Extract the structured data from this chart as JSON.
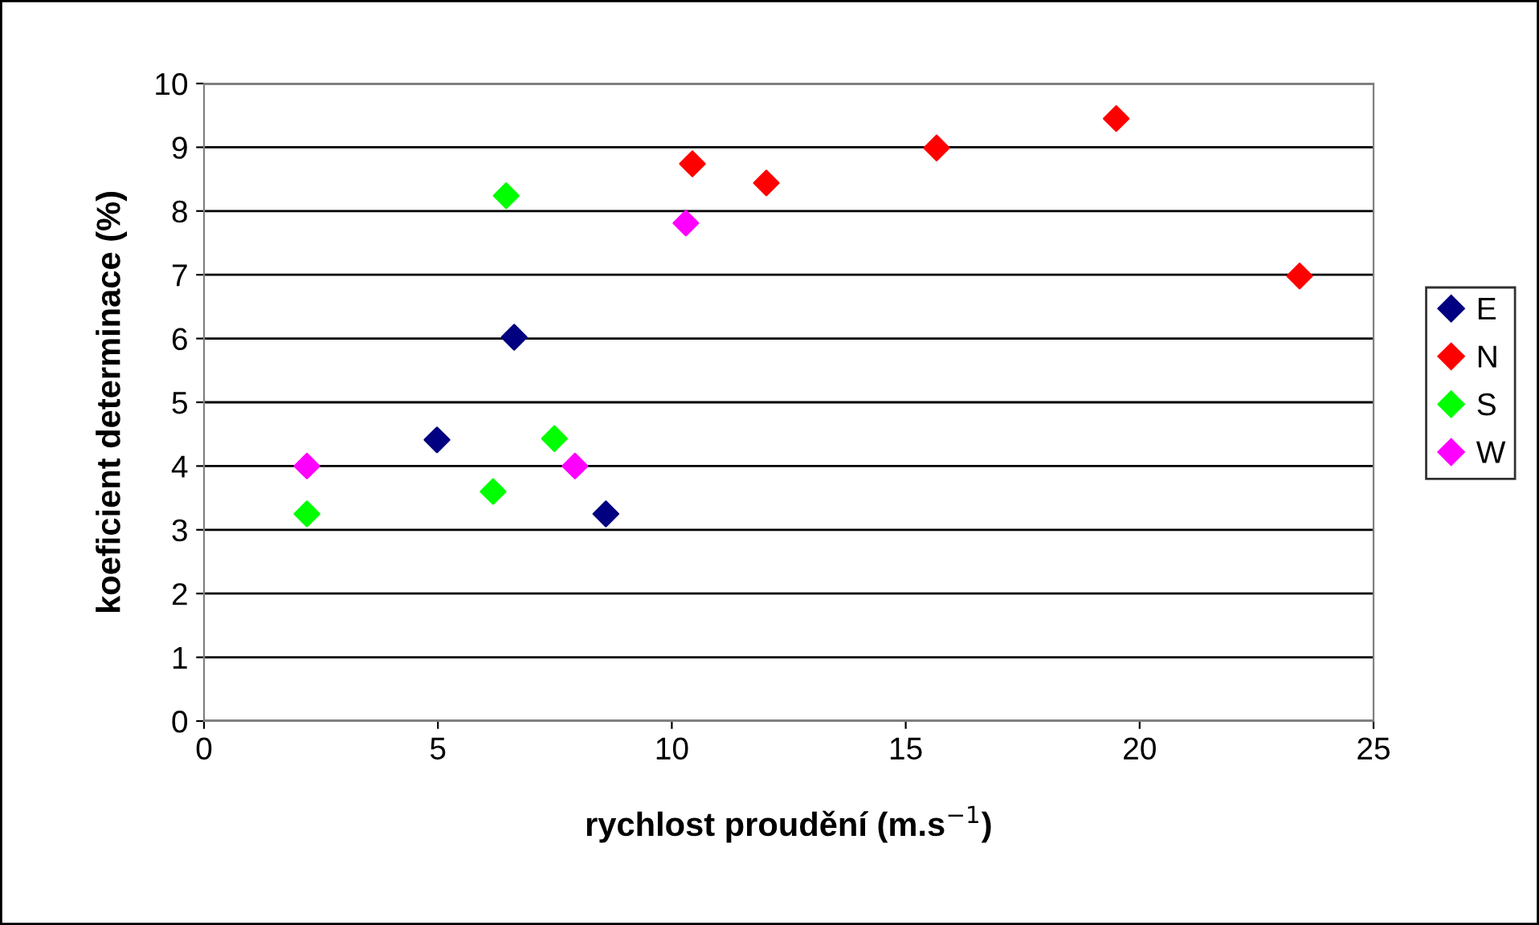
{
  "chart_data": {
    "type": "scatter",
    "xlabel": "rychlost proudění (m.s$^{−1}$)",
    "ylabel": "koeficient determinace (%)",
    "xlim": [
      0,
      25
    ],
    "xticks": [
      0,
      5,
      10,
      15,
      20,
      25
    ],
    "ylim": [
      0,
      10
    ],
    "yticks": [
      0,
      1,
      2,
      3,
      4,
      5,
      6,
      7,
      8,
      9,
      10
    ],
    "grid": "y",
    "legend": "right",
    "marker": "diamond",
    "series": [
      {
        "name": "E",
        "color": "#000080",
        "x": [
          4.98,
          6.63,
          8.59
        ],
        "values": [
          4.41,
          6.02,
          3.25
        ]
      },
      {
        "name": "N",
        "color": "#ff0000",
        "x": [
          10.44,
          12.02,
          15.66,
          19.5,
          23.42
        ],
        "values": [
          8.74,
          8.44,
          8.99,
          9.45,
          6.98
        ]
      },
      {
        "name": "S",
        "color": "#00ff00",
        "x": [
          2.2,
          6.46,
          6.18,
          7.49
        ],
        "values": [
          3.25,
          8.24,
          3.6,
          4.43
        ]
      },
      {
        "name": "W",
        "color": "#ff00ff",
        "x": [
          2.2,
          7.93,
          10.3
        ],
        "values": [
          4.0,
          4.0,
          7.81
        ]
      }
    ]
  }
}
